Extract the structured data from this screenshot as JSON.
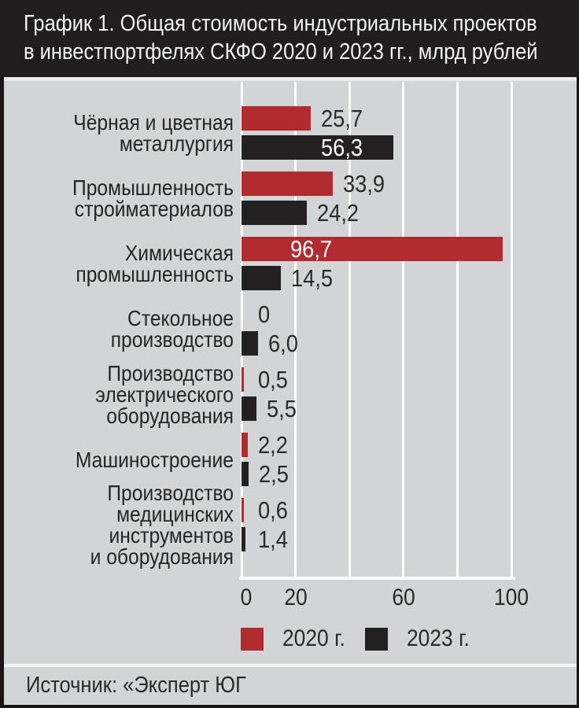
{
  "window": {
    "title_lines": [
      "График 1. Общая стоимость индустриальных проектов",
      "в инвестпортфелях СКФО 2020 и 2023 гг., млрд рублей"
    ]
  },
  "footer": {
    "source": "Источник: «Эксперт ЮГ"
  },
  "colors": {
    "background": "#d2d5d5",
    "header": "#201d1e",
    "red": "#b22b31",
    "black": "#242021",
    "gridline": "#fbfcfc",
    "text_dark": "#2b292a",
    "value_inside": "#ffffff"
  },
  "chart_data": {
    "type": "bar",
    "orientation": "horizontal",
    "title": "График 1. Общая стоимость индустриальных проектов в инвестпортфелях СКФО 2020 и 2023 гг., млрд рублей",
    "unit": "млрд рублей",
    "xlabel": "",
    "ylabel": "",
    "xlim": [
      0,
      100
    ],
    "grid": "vertical",
    "legend_position": "bottom",
    "categories": [
      {
        "name": "Чёрная и цветная металлургия",
        "lines": [
          "Чёрная и цветная",
          "металлургия"
        ]
      },
      {
        "name": "Промышленность стройматериалов",
        "lines": [
          "Промышленность",
          "стройматериалов"
        ]
      },
      {
        "name": "Химическая промышленность",
        "lines": [
          "Химическая",
          "промышленность"
        ]
      },
      {
        "name": "Стекольное производство",
        "lines": [
          "Стекольное",
          "производство"
        ]
      },
      {
        "name": "Производство электрического оборудования",
        "lines": [
          "Производство",
          "электрического",
          "оборудования"
        ]
      },
      {
        "name": "Машиностроение",
        "lines": [
          "Машиностроение"
        ]
      },
      {
        "name": "Производство медицинских инструментов и оборудования",
        "lines": [
          "Производство",
          "медицинских",
          "инструментов",
          "и оборудования"
        ]
      }
    ],
    "series": [
      {
        "name": "2020 г.",
        "color": "#b22b31",
        "values": [
          25.7,
          33.9,
          96.7,
          0,
          0.5,
          2.2,
          0.6
        ],
        "labels": [
          "25,7",
          "33,9",
          "96,7",
          "0",
          "0,5",
          "2,2",
          "0,6"
        ],
        "inside": [
          false,
          false,
          true,
          false,
          false,
          false,
          false
        ],
        "inside_left": [
          0,
          0,
          62,
          0,
          0,
          0,
          0
        ]
      },
      {
        "name": "2023 г.",
        "color": "#242021",
        "values": [
          56.3,
          24.2,
          14.5,
          6.0,
          5.5,
          2.5,
          1.4
        ],
        "labels": [
          "56,3",
          "24,2",
          "14,5",
          "6,0",
          "5,5",
          "2,5",
          "1,4"
        ],
        "inside": [
          true,
          false,
          false,
          false,
          false,
          false,
          false
        ],
        "inside_left": [
          101,
          0,
          0,
          0,
          0,
          0,
          0
        ]
      }
    ],
    "xticks": [
      {
        "v": 0,
        "label": "0"
      },
      {
        "v": 20,
        "label": "20"
      },
      {
        "v": 40,
        "label": ""
      },
      {
        "v": 60,
        "label": "60"
      },
      {
        "v": 80,
        "label": ""
      },
      {
        "v": 100,
        "label": "100"
      }
    ]
  }
}
